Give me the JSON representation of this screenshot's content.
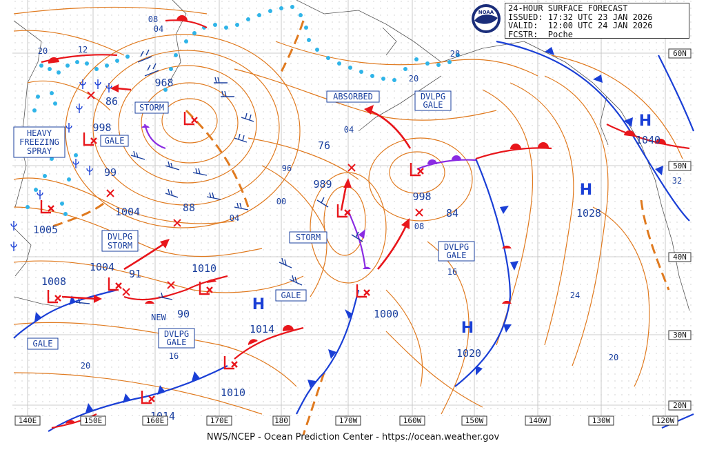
{
  "header": {
    "title": "24-HOUR SURFACE FORECAST",
    "issued": "ISSUED: 17:32 UTC 23 JAN 2026",
    "valid": "VALID:  12:00 UTC 24 JAN 2026",
    "forecaster": "FCSTR:  Poche",
    "logo_text": "NOAA"
  },
  "footer": {
    "credit": "NWS/NCEP - Ocean Prediction Center - https://ocean.weather.gov"
  },
  "colors": {
    "isobar": "#e07a1f",
    "cold_front": "#1a3fd6",
    "warm_front": "#e8161b",
    "occluded": "#8a2be2",
    "ice_dots": "#2fb4e8",
    "label_text": "#1a3f9e",
    "grid": "#c8c8c8"
  },
  "longitude_labels": [
    "140E",
    "150E",
    "160E",
    "170E",
    "180",
    "170W",
    "160W",
    "150W",
    "140W",
    "130W",
    "120W"
  ],
  "latitude_labels": [
    "60N",
    "50N",
    "40N",
    "30N",
    "20N"
  ],
  "pressure_centers": [
    {
      "type": "H",
      "value": "1040"
    },
    {
      "type": "H",
      "value": "1028"
    },
    {
      "type": "H",
      "value": "1020"
    },
    {
      "type": "H",
      "value": "1014"
    }
  ],
  "lows": [
    "968",
    "998",
    "1004",
    "1005",
    "1008",
    "1010",
    "989",
    "1000",
    "998",
    "1010",
    "1014"
  ],
  "warnings": [
    {
      "text": "STORM"
    },
    {
      "text": "GALE"
    },
    {
      "text": "HEAVY"
    },
    {
      "text": "FREEZING"
    },
    {
      "text": "SPRAY"
    },
    {
      "text": "DVLPG"
    },
    {
      "text": "STORM"
    },
    {
      "text": "STORM"
    },
    {
      "text": "GALE"
    },
    {
      "text": "DVLPG"
    },
    {
      "text": "GALE"
    },
    {
      "text": "GALE"
    },
    {
      "text": "DVLPG"
    },
    {
      "text": "GALE"
    },
    {
      "text": "ABSORBED"
    },
    {
      "text": "DVLPG"
    },
    {
      "text": "GALE"
    }
  ],
  "isobar_labels": [
    "08",
    "04",
    "20",
    "12",
    "86",
    "99",
    "88",
    "04",
    "00",
    "96",
    "76",
    "04",
    "84",
    "08",
    "16",
    "24",
    "20",
    "32",
    "28",
    "20",
    "16",
    "20",
    "91",
    "90",
    "NEW"
  ]
}
